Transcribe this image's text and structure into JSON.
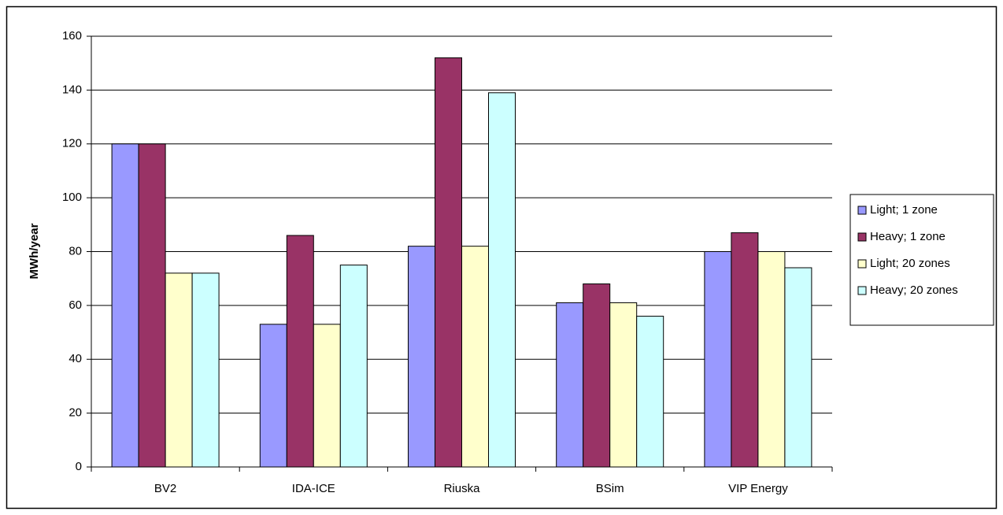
{
  "chart_data": {
    "type": "bar",
    "y_label": "MWh/year",
    "categories": [
      "BV2",
      "IDA-ICE",
      "Riuska",
      "BSim",
      "VIP Energy"
    ],
    "series": [
      {
        "name": "Light; 1 zone",
        "color": "#9999ff",
        "values": [
          120,
          53,
          82,
          61,
          80
        ]
      },
      {
        "name": "Heavy; 1 zone",
        "color": "#993366",
        "values": [
          120,
          86,
          152,
          68,
          87
        ]
      },
      {
        "name": "Light; 20 zones",
        "color": "#ffffcc",
        "values": [
          72,
          53,
          82,
          61,
          80
        ]
      },
      {
        "name": "Heavy; 20 zones",
        "color": "#ccffff",
        "values": [
          72,
          75,
          139,
          56,
          74
        ]
      }
    ],
    "ylim": [
      0,
      160
    ],
    "yticks": [
      0,
      20,
      40,
      60,
      80,
      100,
      120,
      140,
      160
    ],
    "grid": true,
    "legend": "right"
  }
}
